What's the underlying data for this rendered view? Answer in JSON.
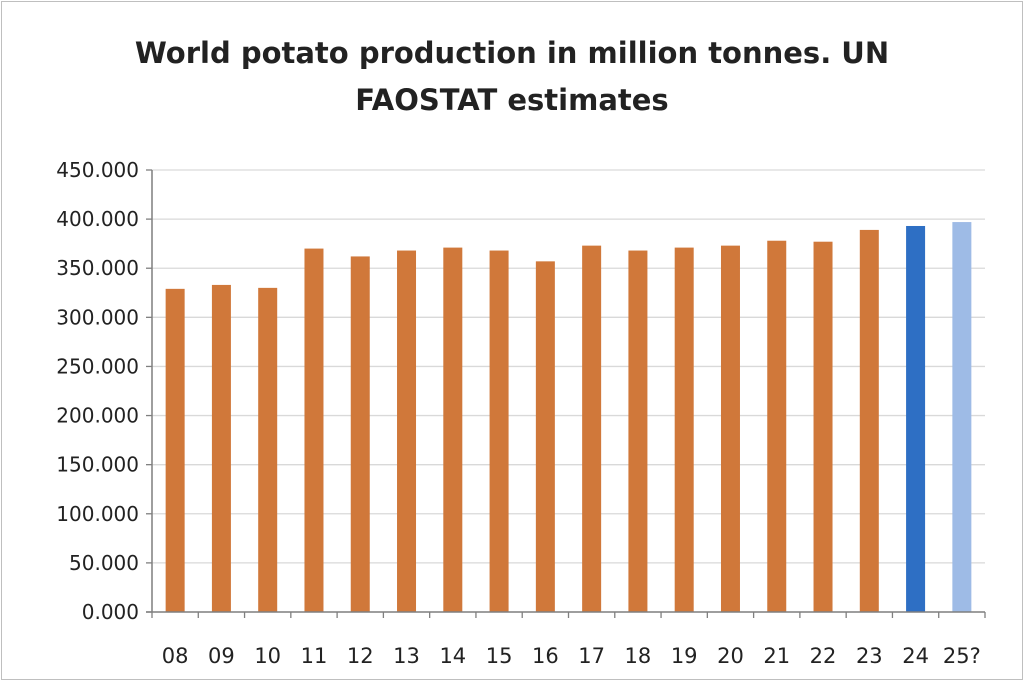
{
  "chart_data": {
    "type": "bar",
    "title_lines": [
      "World potato production in million tonnes. UN",
      "FAOSTAT estimates"
    ],
    "categories": [
      "08",
      "09",
      "10",
      "11",
      "12",
      "13",
      "14",
      "15",
      "16",
      "17",
      "18",
      "19",
      "20",
      "21",
      "22",
      "23",
      "24",
      "25?"
    ],
    "values": [
      329,
      333,
      330,
      370,
      362,
      368,
      371,
      368,
      357,
      373,
      368,
      371,
      373,
      378,
      377,
      389,
      393,
      397
    ],
    "bar_colors": [
      "#d0783a",
      "#d0783a",
      "#d0783a",
      "#d0783a",
      "#d0783a",
      "#d0783a",
      "#d0783a",
      "#d0783a",
      "#d0783a",
      "#d0783a",
      "#d0783a",
      "#d0783a",
      "#d0783a",
      "#d0783a",
      "#d0783a",
      "#d0783a",
      "#2e6fc4",
      "#9ebbe6"
    ],
    "y_tick_labels": [
      "0.000",
      "50.000",
      "100.000",
      "150.000",
      "200.000",
      "250.000",
      "300.000",
      "350.000",
      "400.000",
      "450.000"
    ],
    "ylim": [
      0,
      450
    ],
    "y_tick_step": 50,
    "grid": true,
    "gridline_color": "#d9d9d9",
    "xlabel": "",
    "ylabel": ""
  }
}
